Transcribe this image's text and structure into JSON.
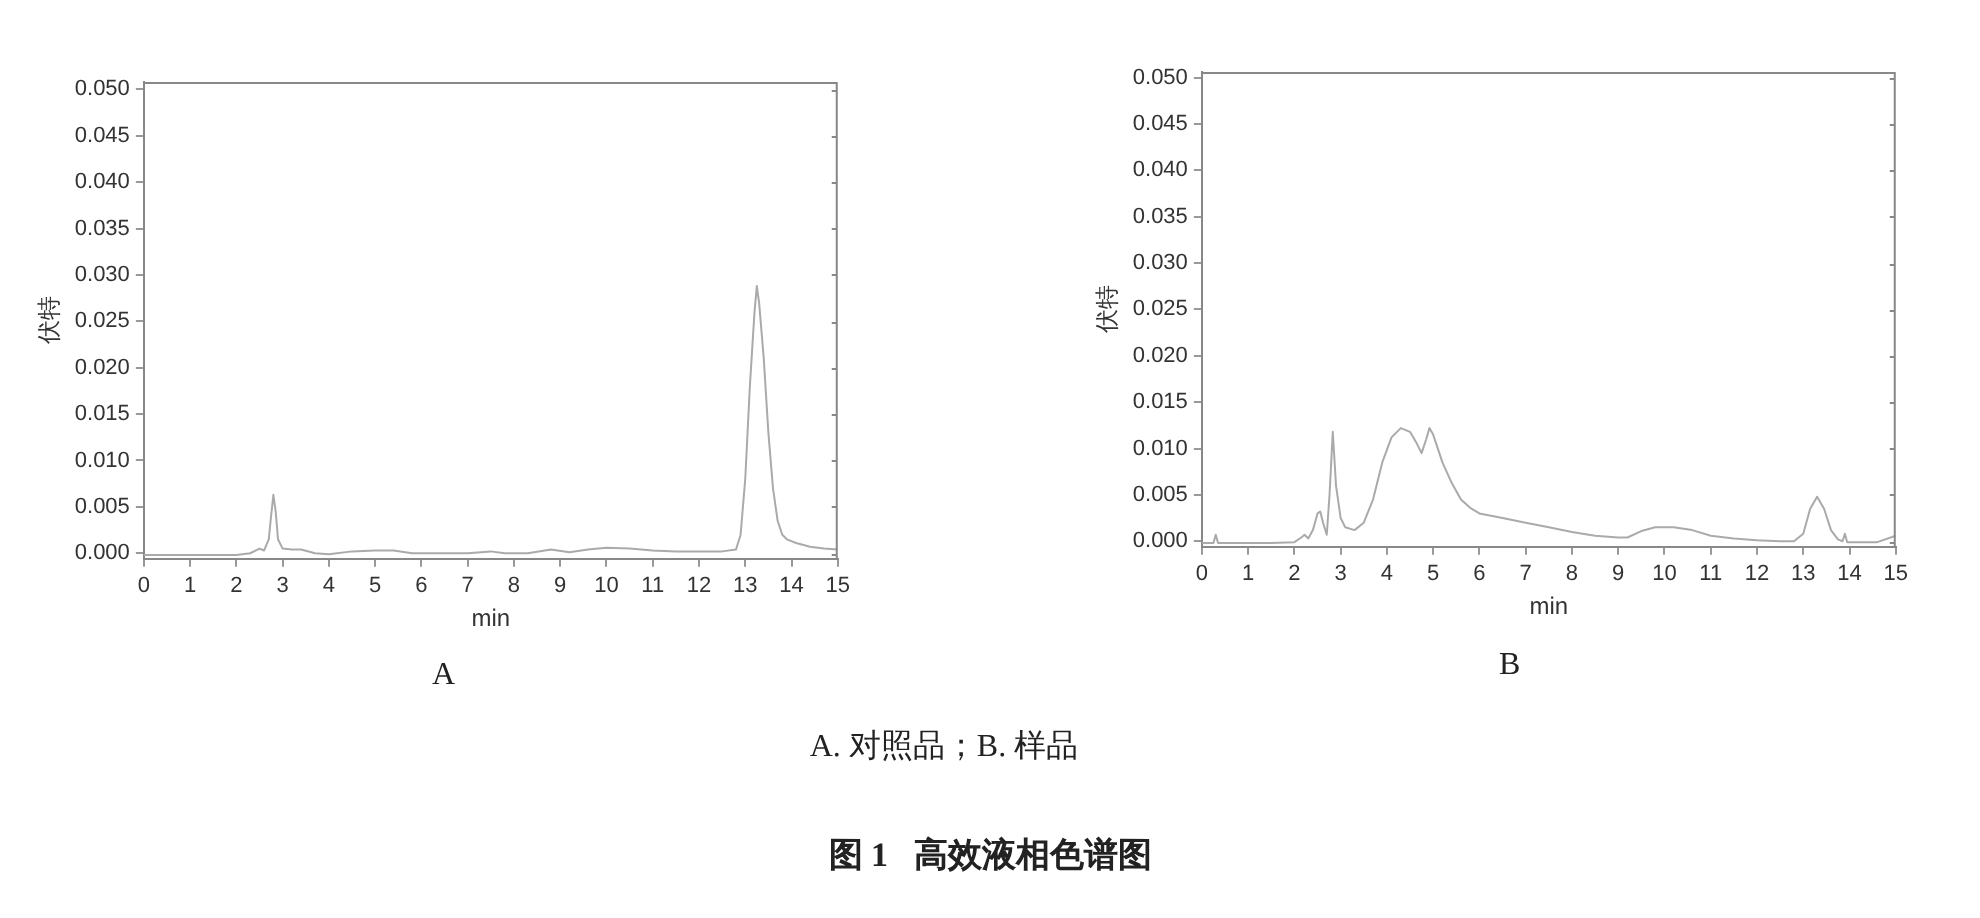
{
  "chart_data": [
    {
      "type": "line",
      "xlabel": "min",
      "ylabel": "伏特",
      "annotations": [
        "A"
      ],
      "marker": "none",
      "x": [
        0,
        0.5,
        1,
        1.5,
        2,
        2.3,
        2.5,
        2.6,
        2.7,
        2.75,
        2.8,
        2.85,
        2.9,
        3.0,
        3.2,
        3.4,
        3.7,
        4.0,
        4.5,
        5.0,
        5.4,
        5.8,
        6.5,
        7.0,
        7.5,
        7.8,
        8.3,
        8.8,
        9.2,
        9.6,
        10.0,
        10.5,
        11.0,
        11.5,
        12.0,
        12.5,
        12.8,
        12.9,
        13.0,
        13.1,
        13.2,
        13.25,
        13.3,
        13.4,
        13.5,
        13.6,
        13.7,
        13.8,
        13.9,
        14.1,
        14.4,
        14.7,
        15
      ],
      "series": [
        {
          "color": "#aaaaaa",
          "values": [
            -0.0002,
            -0.0002,
            -0.0002,
            -0.0002,
            -0.0002,
            0,
            0.0005,
            0.0003,
            0.0015,
            0.004,
            0.0063,
            0.0045,
            0.0015,
            0.0005,
            0.0004,
            0.0004,
            0,
            -0.0001,
            0.0002,
            0.0003,
            0.0003,
            0,
            0,
            0,
            0.0002,
            0,
            0,
            0.0004,
            0.0001,
            0.0004,
            0.0006,
            0.0005,
            0.0003,
            0.0002,
            0.0002,
            0.0002,
            0.0004,
            0.002,
            0.008,
            0.018,
            0.026,
            0.0288,
            0.027,
            0.021,
            0.013,
            0.007,
            0.0035,
            0.002,
            0.0015,
            0.0011,
            0.0007,
            0.0005,
            0.0004
          ]
        }
      ],
      "xlim": [
        0,
        15
      ],
      "xticks": [
        0,
        1,
        2,
        3,
        4,
        5,
        6,
        7,
        8,
        9,
        10,
        11,
        12,
        13,
        14,
        15
      ],
      "ylim": [
        -0.0006,
        0.0508
      ],
      "yticks": [
        {
          "value": 0,
          "label": "0.000"
        },
        0.005,
        {
          "value": 0.01,
          "label": "0.010"
        },
        0.015,
        {
          "value": 0.02,
          "label": "0.020"
        },
        0.025,
        {
          "value": 0.03,
          "label": "0.030"
        },
        0.035,
        {
          "value": 0.04,
          "label": "0.040"
        },
        0.045,
        {
          "value": 0.05,
          "label": "0.050"
        }
      ]
    },
    {
      "type": "line",
      "xlabel": "min",
      "ylabel": "伏特",
      "annotations": [
        "B"
      ],
      "marker": "none",
      "x": [
        0,
        0.25,
        0.3,
        0.35,
        1,
        1.5,
        2,
        2.15,
        2.22,
        2.3,
        2.4,
        2.5,
        2.56,
        2.62,
        2.7,
        2.76,
        2.83,
        2.9,
        3.0,
        3.1,
        3.3,
        3.5,
        3.7,
        3.9,
        4.1,
        4.3,
        4.5,
        4.65,
        4.75,
        4.85,
        4.92,
        5.0,
        5.2,
        5.4,
        5.6,
        5.8,
        6.0,
        6.5,
        7.0,
        7.5,
        8.0,
        8.5,
        9.0,
        9.2,
        9.5,
        9.8,
        10.2,
        10.6,
        11.0,
        11.5,
        12.0,
        12.5,
        12.8,
        13.0,
        13.15,
        13.3,
        13.45,
        13.6,
        13.75,
        13.85,
        13.9,
        13.95,
        14.2,
        14.6,
        15
      ],
      "series": [
        {
          "color": "#aaaaaa",
          "values": [
            -0.0002,
            -0.0002,
            0.0007,
            -0.0002,
            -0.0002,
            -0.0002,
            -0.0001,
            0.0004,
            0.0007,
            0.0003,
            0.0012,
            0.003,
            0.0032,
            0.002,
            0.0007,
            0.005,
            0.0118,
            0.006,
            0.0025,
            0.0015,
            0.0012,
            0.002,
            0.0045,
            0.0085,
            0.0112,
            0.0122,
            0.0118,
            0.0105,
            0.0095,
            0.011,
            0.0122,
            0.0115,
            0.0085,
            0.0063,
            0.0045,
            0.0036,
            0.003,
            0.0025,
            0.002,
            0.0015,
            0.001,
            0.0006,
            0.0004,
            0.0004,
            0.0011,
            0.0015,
            0.0015,
            0.0012,
            0.0006,
            0.0003,
            0.0001,
            0,
            0,
            0.0008,
            0.0035,
            0.0048,
            0.0035,
            0.0012,
            0.0002,
            0,
            0.0008,
            -0.0001,
            -0.0001,
            -0.0001,
            0.0006
          ]
        }
      ],
      "xlim": [
        0,
        15
      ],
      "xticks": [
        0,
        1,
        2,
        3,
        4,
        5,
        6,
        7,
        8,
        9,
        10,
        11,
        12,
        13,
        14,
        15
      ],
      "ylim": [
        -0.0006,
        0.0506
      ],
      "yticks": [
        {
          "value": 0,
          "label": "0.000"
        },
        0.005,
        {
          "value": 0.01,
          "label": "0.010"
        },
        0.015,
        {
          "value": 0.02,
          "label": "0.020"
        },
        0.025,
        {
          "value": 0.03,
          "label": "0.030"
        },
        0.035,
        {
          "value": 0.04,
          "label": "0.040"
        },
        0.045,
        {
          "value": 0.05,
          "label": "0.050"
        }
      ]
    },
    {
      "type": "other",
      "title": "图 1   高效液相色谱图",
      "annotations": [
        "A. 对照品；B. 样品"
      ]
    }
  ]
}
